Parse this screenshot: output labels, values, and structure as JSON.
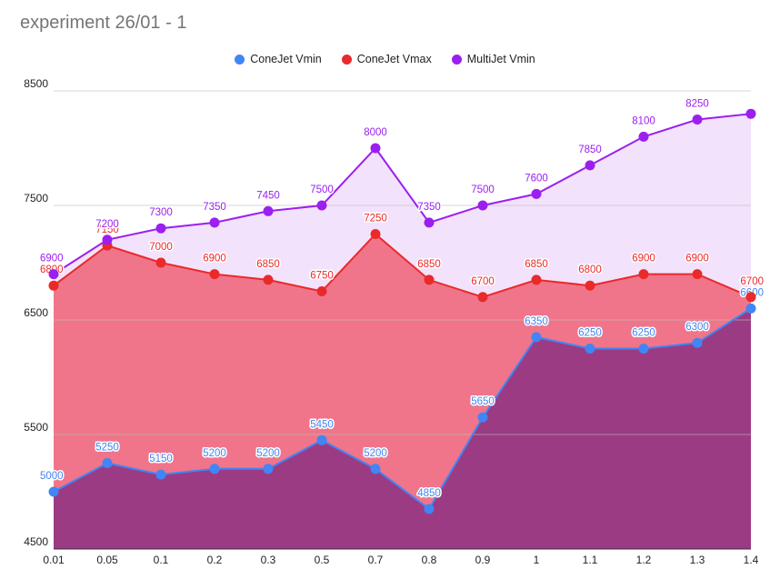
{
  "chart_data": {
    "type": "area",
    "title": "experiment 26/01 - 1",
    "categories": [
      "0.01",
      "0.05",
      "0.1",
      "0.2",
      "0.3",
      "0.5",
      "0.7",
      "0.8",
      "0.9",
      "1",
      "1.1",
      "1.2",
      "1.3",
      "1.4"
    ],
    "series": [
      {
        "name": "ConeJet Vmin",
        "color": "#4285f4",
        "fill": "#9b3b84",
        "values": [
          5000,
          5250,
          5150,
          5200,
          5200,
          5450,
          5200,
          4850,
          5650,
          6350,
          6250,
          6250,
          6300,
          6600
        ]
      },
      {
        "name": "ConeJet Vmax",
        "color": "#ea2a2a",
        "fill": "#f0758a",
        "values": [
          6800,
          7150,
          7000,
          6900,
          6850,
          6750,
          7250,
          6850,
          6700,
          6850,
          6800,
          6900,
          6900,
          6700
        ]
      },
      {
        "name": "MultiJet Vmin",
        "color": "#9b1ff0",
        "fill": "#f3e2fb",
        "values": [
          6900,
          7200,
          7300,
          7350,
          7450,
          7500,
          8000,
          7350,
          7500,
          7600,
          7850,
          8100,
          8250,
          8300
        ]
      }
    ],
    "data_labels": {
      "ConeJet Vmin": [
        "5000",
        "5250",
        "5150",
        "5200",
        "5200",
        "5450",
        "5200",
        "4850",
        "5650",
        "6350",
        "6250",
        "6250",
        "6300",
        "6600"
      ],
      "ConeJet Vmax": [
        "6800",
        "7150",
        "7000",
        "6900",
        "6850",
        "6750",
        "7250",
        "6850",
        "6700",
        "6850",
        "6800",
        "6900",
        "6900",
        "6700"
      ],
      "MultiJet Vmin": [
        "6900",
        "7200",
        "7300",
        "7350",
        "7450",
        "7500",
        "8000",
        "7350",
        "7500",
        "7600",
        "7850",
        "8100",
        "8250",
        ""
      ]
    },
    "ylim": [
      4500,
      8500
    ],
    "yticks": [
      "4500",
      "5500",
      "6500",
      "7500",
      "8500"
    ],
    "grid": true,
    "legend_position": "top",
    "xlabel": "",
    "ylabel": ""
  }
}
